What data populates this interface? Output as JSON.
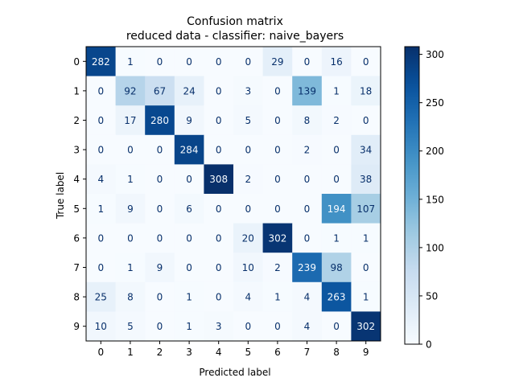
{
  "chart_data": {
    "type": "heatmap",
    "title": "Confusion matrix",
    "subtitle": "reduced data - classifier: naive_bayers",
    "xlabel": "Predicted label",
    "ylabel": "True label",
    "x_categories": [
      "0",
      "1",
      "2",
      "3",
      "4",
      "5",
      "6",
      "7",
      "8",
      "9"
    ],
    "y_categories": [
      "0",
      "1",
      "2",
      "3",
      "4",
      "5",
      "6",
      "7",
      "8",
      "9"
    ],
    "values": [
      [
        282,
        1,
        0,
        0,
        0,
        0,
        29,
        0,
        16,
        0
      ],
      [
        0,
        92,
        67,
        24,
        0,
        3,
        0,
        139,
        1,
        18
      ],
      [
        0,
        17,
        280,
        9,
        0,
        5,
        0,
        8,
        2,
        0
      ],
      [
        0,
        0,
        0,
        284,
        0,
        0,
        0,
        2,
        0,
        34
      ],
      [
        4,
        1,
        0,
        0,
        308,
        2,
        0,
        0,
        0,
        38
      ],
      [
        1,
        9,
        0,
        6,
        0,
        0,
        0,
        0,
        194,
        107
      ],
      [
        0,
        0,
        0,
        0,
        0,
        20,
        302,
        0,
        1,
        1
      ],
      [
        0,
        1,
        9,
        0,
        0,
        10,
        2,
        239,
        98,
        0
      ],
      [
        25,
        8,
        0,
        1,
        0,
        4,
        1,
        4,
        263,
        1
      ],
      [
        10,
        5,
        0,
        1,
        3,
        0,
        0,
        4,
        0,
        302
      ]
    ],
    "colormap": "Blues",
    "color_low": "#f7fbff",
    "color_high": "#08306b",
    "colorbar": {
      "min": 0,
      "max": 308,
      "ticks": [
        0,
        50,
        100,
        150,
        200,
        250,
        300
      ]
    }
  }
}
